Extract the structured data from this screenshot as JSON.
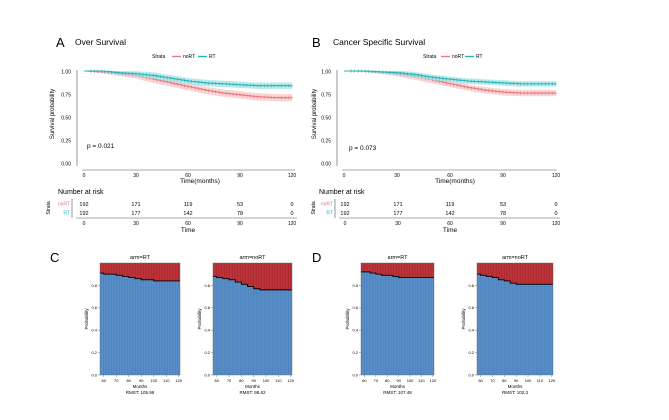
{
  "panels": {
    "A": {
      "letter": "A",
      "title": "Over Survival",
      "legend": {
        "label": "Strata",
        "items": [
          "noRT",
          "RT"
        ]
      },
      "ylabel": "Survival probability",
      "yticks": [
        "0.00",
        "0.25",
        "0.50",
        "0.75",
        "1.00"
      ],
      "xticks": [
        "0",
        "30",
        "60",
        "90",
        "120"
      ],
      "xlabel": "Time(months)",
      "pvalue": "p = 0.021"
    },
    "B": {
      "letter": "B",
      "title": "Cancer Specific Survival",
      "legend": {
        "label": "Strata",
        "items": [
          "noRT",
          "RT"
        ]
      },
      "ylabel": "Survival probability",
      "yticks": [
        "0.00",
        "0.25",
        "0.50",
        "0.75",
        "1.00"
      ],
      "xticks": [
        "0",
        "30",
        "60",
        "90",
        "120"
      ],
      "xlabel": "Time(months)",
      "pvalue": "p = 0.073"
    },
    "C": {
      "letter": "C"
    },
    "D": {
      "letter": "D"
    }
  },
  "risk_tables": {
    "A": {
      "title": "Number at risk",
      "side_label": "Strata",
      "rows": [
        {
          "name": "noRT",
          "values": [
            "192",
            "171",
            "119",
            "53",
            "0"
          ]
        },
        {
          "name": "RT",
          "values": [
            "192",
            "177",
            "142",
            "78",
            "0"
          ]
        }
      ],
      "xticks": [
        "0",
        "30",
        "60",
        "90",
        "120"
      ],
      "xlabel": "Time"
    },
    "B": {
      "title": "Number at risk",
      "side_label": "Strata",
      "rows": [
        {
          "name": "noRT",
          "values": [
            "192",
            "171",
            "119",
            "53",
            "0"
          ]
        },
        {
          "name": "RT",
          "values": [
            "192",
            "177",
            "142",
            "78",
            "0"
          ]
        }
      ],
      "xticks": [
        "0",
        "30",
        "60",
        "90",
        "120"
      ],
      "xlabel": "Time"
    }
  },
  "colors": {
    "noRT": "#e8767a",
    "noRT_band": "#f6c7c8",
    "RT": "#22b5b9",
    "RT_band": "#a5e2e3",
    "area_blue": "#4e86c2",
    "area_red": "#b3282d",
    "step_line": "#000000"
  },
  "chart_data": [
    {
      "id": "A",
      "type": "line",
      "title": "Over Survival",
      "xlabel": "Time(months)",
      "ylabel": "Survival probability",
      "xlim": [
        0,
        120
      ],
      "ylim": [
        0,
        1
      ],
      "x": [
        0,
        10,
        20,
        30,
        40,
        50,
        60,
        70,
        80,
        90,
        100,
        110,
        120
      ],
      "series": [
        {
          "name": "noRT",
          "values": [
            1.0,
            0.99,
            0.97,
            0.95,
            0.91,
            0.87,
            0.83,
            0.79,
            0.76,
            0.74,
            0.72,
            0.71,
            0.71
          ],
          "ci_width": 0.04
        },
        {
          "name": "RT",
          "values": [
            1.0,
            1.0,
            0.98,
            0.97,
            0.95,
            0.92,
            0.89,
            0.87,
            0.86,
            0.85,
            0.84,
            0.84,
            0.84
          ],
          "ci_width": 0.035
        }
      ],
      "legend": [
        "noRT",
        "RT"
      ],
      "annotation": "p = 0.021"
    },
    {
      "id": "B",
      "type": "line",
      "title": "Cancer Specific Survival",
      "xlabel": "Time(months)",
      "ylabel": "Survival probability",
      "xlim": [
        0,
        120
      ],
      "ylim": [
        0,
        1
      ],
      "x": [
        0,
        10,
        20,
        30,
        40,
        50,
        60,
        70,
        80,
        90,
        100,
        110,
        120
      ],
      "series": [
        {
          "name": "noRT",
          "values": [
            1.0,
            1.0,
            0.99,
            0.97,
            0.94,
            0.9,
            0.86,
            0.82,
            0.79,
            0.77,
            0.76,
            0.76,
            0.76
          ],
          "ci_width": 0.035
        },
        {
          "name": "RT",
          "values": [
            1.0,
            1.0,
            0.99,
            0.98,
            0.96,
            0.93,
            0.91,
            0.89,
            0.88,
            0.87,
            0.86,
            0.86,
            0.86
          ],
          "ci_width": 0.03
        }
      ],
      "legend": [
        "noRT",
        "RT"
      ],
      "annotation": "p = 0.073"
    },
    {
      "id": "C1",
      "type": "area",
      "title": "arm=RT",
      "xlabel": "Months",
      "ylabel": "Probability",
      "subtitle": "RMST: 105.99",
      "xticks": [
        "60",
        "70",
        "80",
        "90",
        "100",
        "110",
        "120"
      ],
      "yticks": [
        "0.0",
        "0.2",
        "0.4",
        "0.6",
        "0.8"
      ],
      "xlim": [
        57,
        121
      ],
      "ylim": [
        0,
        1.0
      ],
      "x": [
        57,
        60,
        65,
        70,
        75,
        80,
        85,
        90,
        95,
        100,
        105,
        110,
        115,
        121
      ],
      "values": [
        0.91,
        0.9,
        0.9,
        0.89,
        0.88,
        0.87,
        0.86,
        0.85,
        0.85,
        0.84,
        0.84,
        0.84,
        0.84,
        0.84
      ]
    },
    {
      "id": "C2",
      "type": "area",
      "title": "arm=noRT",
      "xlabel": "Months",
      "ylabel": "Probability",
      "subtitle": "RMST: 98.62",
      "xticks": [
        "60",
        "70",
        "80",
        "90",
        "100",
        "110",
        "120"
      ],
      "yticks": [
        "0.0",
        "0.2",
        "0.4",
        "0.6",
        "0.8"
      ],
      "xlim": [
        57,
        121
      ],
      "ylim": [
        0,
        1.0
      ],
      "x": [
        57,
        60,
        65,
        70,
        75,
        80,
        85,
        90,
        95,
        100,
        105,
        110,
        115,
        121
      ],
      "values": [
        0.88,
        0.87,
        0.86,
        0.85,
        0.83,
        0.81,
        0.79,
        0.77,
        0.76,
        0.76,
        0.76,
        0.76,
        0.76,
        0.76
      ]
    },
    {
      "id": "D1",
      "type": "area",
      "title": "arm=RT",
      "xlabel": "Months",
      "ylabel": "Probability",
      "subtitle": "RMST: 107.48",
      "xticks": [
        "60",
        "70",
        "80",
        "90",
        "100",
        "110",
        "120"
      ],
      "yticks": [
        "0.0",
        "0.2",
        "0.4",
        "0.6",
        "0.8"
      ],
      "xlim": [
        57,
        121
      ],
      "ylim": [
        0,
        1.0
      ],
      "x": [
        57,
        60,
        65,
        70,
        75,
        80,
        85,
        90,
        95,
        100,
        105,
        110,
        115,
        121
      ],
      "values": [
        0.92,
        0.92,
        0.91,
        0.9,
        0.89,
        0.89,
        0.88,
        0.87,
        0.87,
        0.87,
        0.87,
        0.87,
        0.87,
        0.87
      ]
    },
    {
      "id": "D2",
      "type": "area",
      "title": "arm=noRT",
      "xlabel": "Months",
      "ylabel": "Probability",
      "subtitle": "RMST: 102.3",
      "xticks": [
        "60",
        "70",
        "80",
        "90",
        "100",
        "110",
        "120"
      ],
      "yticks": [
        "0.0",
        "0.2",
        "0.4",
        "0.6",
        "0.8"
      ],
      "xlim": [
        57,
        121
      ],
      "ylim": [
        0,
        1.0
      ],
      "x": [
        57,
        60,
        65,
        70,
        75,
        80,
        85,
        90,
        95,
        100,
        105,
        110,
        115,
        121
      ],
      "values": [
        0.9,
        0.89,
        0.88,
        0.87,
        0.85,
        0.84,
        0.82,
        0.81,
        0.81,
        0.81,
        0.81,
        0.81,
        0.81,
        0.81
      ]
    }
  ]
}
